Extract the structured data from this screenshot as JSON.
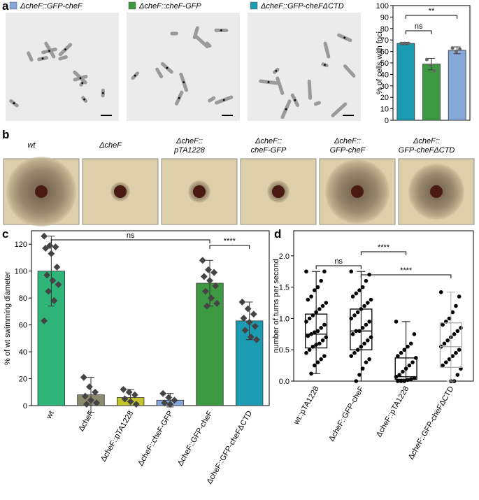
{
  "panel_labels": [
    "a",
    "b",
    "c",
    "d"
  ],
  "legend_a": [
    {
      "label": "ΔcheF::GFP-cheF",
      "color": "#86a8d8"
    },
    {
      "label": "ΔcheF::cheF-GFP",
      "color": "#3e9a42"
    },
    {
      "label": "ΔcheF::GFP-cheFΔCTD",
      "color": "#1c9cb2"
    }
  ],
  "plates": [
    [
      "wt"
    ],
    [
      "ΔcheF"
    ],
    [
      "ΔcheF::",
      "pTA1228"
    ],
    [
      "ΔcheF::",
      "cheF-GFP"
    ],
    [
      "ΔcheF::",
      "GFP-cheF"
    ],
    [
      "ΔcheF::",
      "GFP-cheFΔCTD"
    ]
  ],
  "chart_data": [
    {
      "type": "bar",
      "ylabel": "% of cells with foci",
      "categories": [
        null,
        null,
        null
      ],
      "values": [
        67,
        49,
        61
      ],
      "errors": [
        1,
        5,
        3
      ],
      "colors": [
        "#1c9cb2",
        "#3e9a42",
        "#86a8d8"
      ],
      "points": [
        [
          67,
          67,
          67
        ],
        [
          53,
          48,
          43
        ],
        [
          63,
          60,
          62
        ]
      ],
      "ylim": [
        0,
        100
      ],
      "yticks": [
        0,
        10,
        20,
        30,
        40,
        50,
        60,
        70,
        80,
        90,
        100
      ],
      "annotations": [
        {
          "from": 0,
          "to": 2,
          "label": "**"
        },
        {
          "from": 0,
          "to": 1,
          "label": "ns"
        }
      ]
    },
    {
      "type": "bar",
      "ylabel": "% of wt swimming diameter",
      "categories": [
        "wt",
        "ΔcheF",
        "ΔcheF::pTA1228",
        "ΔcheF::cheF-GFP",
        "ΔcheF::GFP-cheF",
        "ΔcheF::GFP-cheFΔCTD"
      ],
      "values": [
        100,
        8,
        6,
        4,
        91,
        63
      ],
      "errors": [
        26,
        13,
        6,
        5,
        17,
        14
      ],
      "colors": [
        "#2fb47a",
        "#8c8a6c",
        "#c4c42c",
        "#86a8d8",
        "#3e9a42",
        "#1c9cb2"
      ],
      "points": [
        [
          126,
          119,
          118,
          117,
          113,
          103,
          97,
          93,
          90,
          85,
          78,
          63
        ],
        [
          21,
          14,
          10,
          7,
          4,
          2,
          1
        ],
        [
          12,
          10,
          8,
          5,
          3,
          1
        ],
        [
          9,
          6,
          4,
          2,
          1
        ],
        [
          108,
          101,
          99,
          96,
          93,
          89,
          85,
          80,
          76,
          74
        ],
        [
          77,
          72,
          68,
          65,
          62,
          59,
          56,
          51,
          49
        ]
      ],
      "ylim": [
        0,
        130
      ],
      "yticks": [
        0,
        20,
        40,
        60,
        80,
        100,
        120
      ],
      "annotations": [
        {
          "from": 0,
          "to": 4,
          "label": "ns"
        },
        {
          "from": 4,
          "to": 5,
          "label": "****"
        }
      ]
    },
    {
      "type": "box",
      "ylabel": "number of turns per second",
      "categories": [
        "wt::pTA1228",
        "ΔcheF::GFP-cheF",
        "ΔcheF::pTA1228",
        "ΔcheF::GFP-cheFΔCTD"
      ],
      "box_colors": [
        "#000000",
        "#000000",
        "#000000",
        "#aaaaaa"
      ],
      "boxes": [
        {
          "whisker_low": 0.12,
          "q1": 0.53,
          "median": 0.75,
          "q3": 1.07,
          "whisker_high": 1.75
        },
        {
          "whisker_low": 0.0,
          "q1": 0.5,
          "median": 0.8,
          "q3": 1.15,
          "whisker_high": 1.75
        },
        {
          "whisker_low": 0.0,
          "q1": 0.03,
          "median": 0.07,
          "q3": 0.37,
          "whisker_high": 0.95
        },
        {
          "whisker_low": 0.0,
          "q1": 0.22,
          "median": 0.55,
          "q3": 0.93,
          "whisker_high": 1.42
        }
      ],
      "points": [
        [
          1.75,
          1.75,
          1.6,
          1.5,
          1.45,
          1.35,
          1.3,
          1.25,
          1.2,
          1.15,
          1.1,
          1.05,
          1.0,
          0.95,
          0.9,
          0.85,
          0.8,
          0.78,
          0.75,
          0.72,
          0.7,
          0.65,
          0.6,
          0.58,
          0.55,
          0.5,
          0.45,
          0.4,
          0.35,
          0.3,
          0.25,
          0.12
        ],
        [
          1.75,
          1.7,
          1.6,
          1.5,
          1.45,
          1.4,
          1.35,
          1.3,
          1.25,
          1.2,
          1.15,
          1.1,
          1.05,
          1.0,
          0.95,
          0.9,
          0.85,
          0.8,
          0.8,
          0.75,
          0.7,
          0.65,
          0.6,
          0.55,
          0.5,
          0.45,
          0.4,
          0.35,
          0.3,
          0.2,
          0.1,
          0.0
        ],
        [
          0.95,
          0.75,
          0.6,
          0.55,
          0.5,
          0.45,
          0.4,
          0.37,
          0.3,
          0.25,
          0.2,
          0.15,
          0.1,
          0.07,
          0.05,
          0.03,
          0.02,
          0.0,
          0.0,
          0.0
        ],
        [
          1.42,
          1.35,
          1.2,
          1.1,
          1.0,
          0.95,
          0.9,
          0.85,
          0.8,
          0.75,
          0.7,
          0.65,
          0.6,
          0.55,
          0.5,
          0.45,
          0.4,
          0.35,
          0.3,
          0.25,
          0.2,
          0.1,
          0.0,
          0.0
        ]
      ],
      "ylim": [
        0,
        2.4
      ],
      "yticks": [
        {
          "value": 0,
          "label": "0.0"
        },
        {
          "value": 0.5,
          "label": "0.5"
        },
        {
          "value": 1,
          "label": "1.0"
        },
        {
          "value": 1.5,
          "label": "1.5"
        },
        {
          "value": 2,
          "label": "2.0"
        }
      ],
      "annotations": [
        {
          "from": 0,
          "to": 1,
          "label": "ns"
        },
        {
          "from": 1,
          "to": 2,
          "label": "****"
        },
        {
          "from": 1,
          "to": 3,
          "label": "****"
        }
      ]
    }
  ]
}
